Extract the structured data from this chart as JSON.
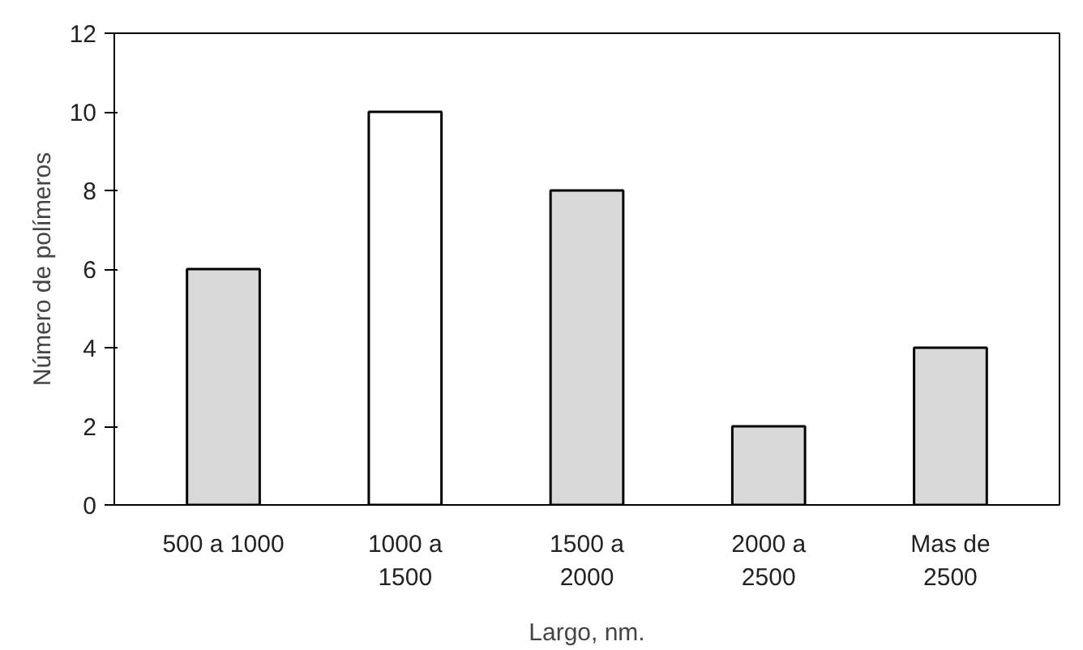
{
  "chart_data": {
    "type": "bar",
    "xlabel": "Largo, nm.",
    "ylabel": "Número de polímeros",
    "categories": [
      "500 a 1000",
      "1000 a\n1500",
      "1500 a\n2000",
      "2000 a\n2500",
      "Mas de\n2500"
    ],
    "values": [
      6,
      10,
      8,
      2,
      4
    ],
    "colors": [
      "#d9d9d9",
      "#ffffff",
      "#d9d9d9",
      "#d9d9d9",
      "#d9d9d9"
    ],
    "ylim": [
      0,
      12
    ],
    "yticks": [
      0,
      2,
      4,
      6,
      8,
      10,
      12
    ],
    "grid": false
  }
}
